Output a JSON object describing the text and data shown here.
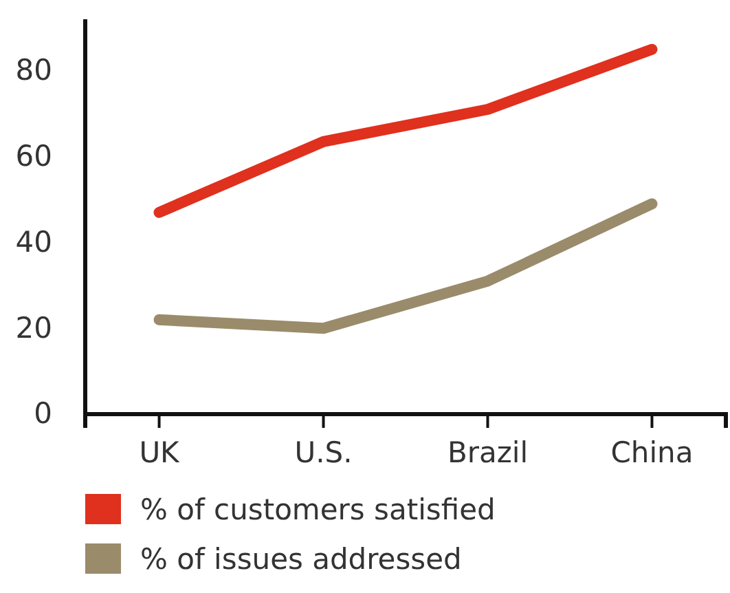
{
  "chart_data": {
    "type": "line",
    "categories": [
      "UK",
      "U.S.",
      "Brazil",
      "China"
    ],
    "series": [
      {
        "name": "% of customers satisfied",
        "color": "#e0301e",
        "values": [
          47,
          63.5,
          71,
          85
        ]
      },
      {
        "name": "% of issues addressed",
        "color": "#9a8b6b",
        "values": [
          22,
          20,
          31,
          49
        ]
      }
    ],
    "ylim": [
      0,
      92
    ],
    "yticks": [
      0,
      20,
      40,
      60,
      80
    ],
    "grid": false,
    "legend": "bottom",
    "marker": "none",
    "line_style": "solid"
  }
}
